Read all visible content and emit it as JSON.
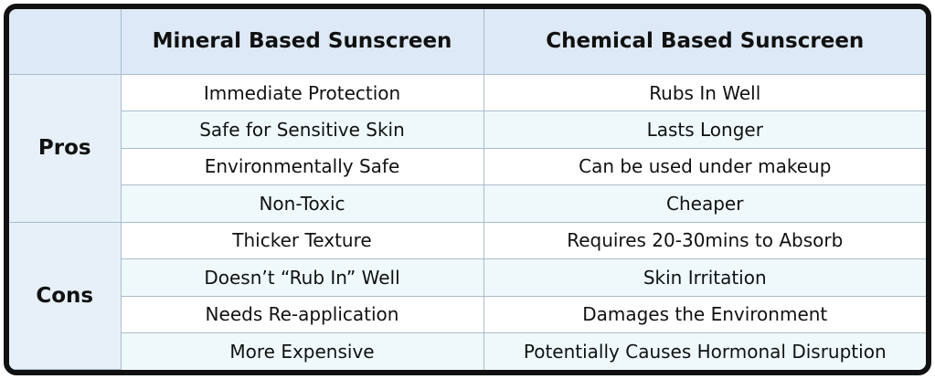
{
  "table": {
    "columns": [
      "Mineral Based Sunscreen",
      "Chemical Based Sunscreen"
    ],
    "groups": [
      {
        "label": "Pros",
        "rows": [
          [
            "Immediate Protection",
            "Rubs In Well"
          ],
          [
            "Safe for Sensitive Skin",
            "Lasts Longer"
          ],
          [
            "Environmentally Safe",
            "Can be used under makeup"
          ],
          [
            "Non-Toxic",
            "Cheaper"
          ]
        ]
      },
      {
        "label": "Cons",
        "rows": [
          [
            "Thicker Texture",
            "Requires 20-30mins to Absorb"
          ],
          [
            "Doesn’t “Rub In” Well",
            "Skin Irritation"
          ],
          [
            "Needs Re-application",
            "Damages the Environment"
          ],
          [
            "More Expensive",
            "Potentially Causes Hormonal Disruption"
          ]
        ]
      }
    ]
  }
}
